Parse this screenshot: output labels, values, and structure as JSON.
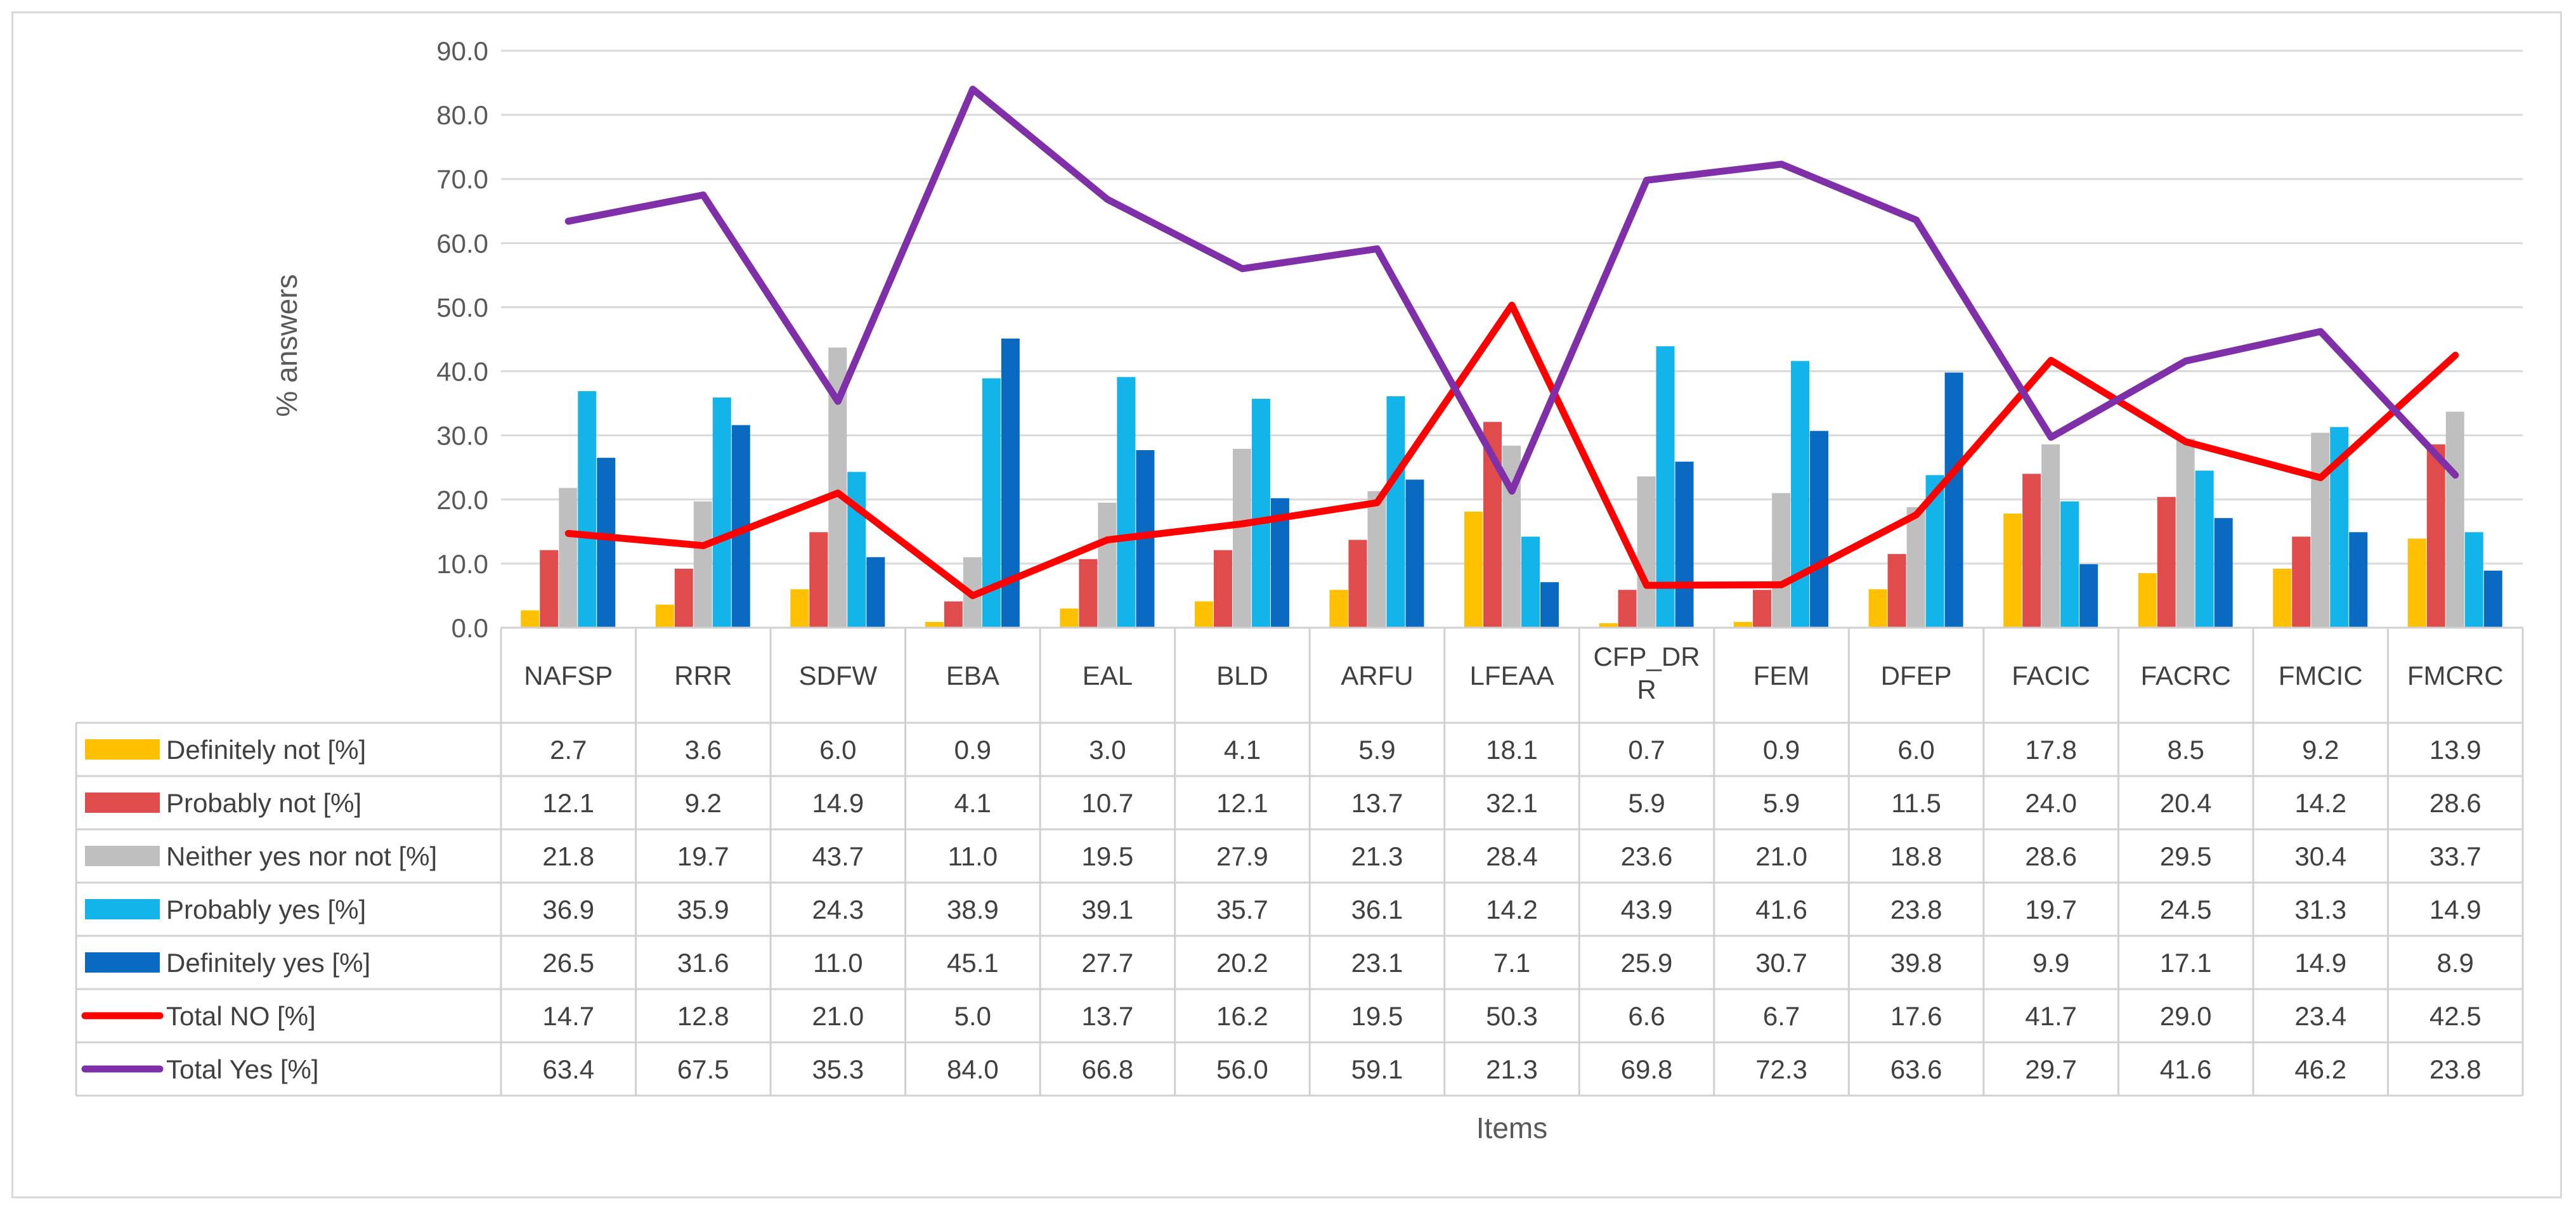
{
  "chart_data": {
    "type": "bar",
    "title": "",
    "xlabel": "Items",
    "ylabel": "% answers",
    "ylim": [
      0,
      90
    ],
    "yticks": [
      "0.0",
      "10.0",
      "20.0",
      "30.0",
      "40.0",
      "50.0",
      "60.0",
      "70.0",
      "80.0",
      "90.0"
    ],
    "categories": [
      "NAFSP",
      "RRR",
      "SDFW",
      "EBA",
      "EAL",
      "BLD",
      "ARFU",
      "LFEAA",
      "CFP_DRR",
      "FEM",
      "DFEP",
      "FACIC",
      "FACRC",
      "FMCIC",
      "FMCRC"
    ],
    "category_lines": [
      [
        "NAFSP"
      ],
      [
        "RRR"
      ],
      [
        "SDFW"
      ],
      [
        "EBA"
      ],
      [
        "EAL"
      ],
      [
        "BLD"
      ],
      [
        "ARFU"
      ],
      [
        "LFEAA"
      ],
      [
        "CFP_DR",
        "R"
      ],
      [
        "FEM"
      ],
      [
        "DFEP"
      ],
      [
        "FACIC"
      ],
      [
        "FACRC"
      ],
      [
        "FMCIC"
      ],
      [
        "FMCRC"
      ]
    ],
    "series": [
      {
        "name": "Definitely not [%]",
        "kind": "bar",
        "color": "#FFC000",
        "values": [
          2.7,
          3.6,
          6.0,
          0.9,
          3.0,
          4.1,
          5.9,
          18.1,
          0.7,
          0.9,
          6.0,
          17.8,
          8.5,
          9.2,
          13.9
        ],
        "labels": [
          "2.7",
          "3.6",
          "6.0",
          "0.9",
          "3.0",
          "4.1",
          "5.9",
          "18.1",
          "0.7",
          "0.9",
          "6.0",
          "17.8",
          "8.5",
          "9.2",
          "13.9"
        ]
      },
      {
        "name": "Probably not [%]",
        "kind": "bar",
        "color": "#E04B4B",
        "values": [
          12.1,
          9.2,
          14.9,
          4.1,
          10.7,
          12.1,
          13.7,
          32.1,
          5.9,
          5.9,
          11.5,
          24.0,
          20.4,
          14.2,
          28.6
        ],
        "labels": [
          "12.1",
          "9.2",
          "14.9",
          "4.1",
          "10.7",
          "12.1",
          "13.7",
          "32.1",
          "5.9",
          "5.9",
          "11.5",
          "24.0",
          "20.4",
          "14.2",
          "28.6"
        ]
      },
      {
        "name": "Neither yes nor not [%]",
        "kind": "bar",
        "color": "#BFBFBF",
        "values": [
          21.8,
          19.7,
          43.7,
          11.0,
          19.5,
          27.9,
          21.3,
          28.4,
          23.6,
          21.0,
          18.8,
          28.6,
          29.5,
          30.4,
          33.7
        ],
        "labels": [
          "21.8",
          "19.7",
          "43.7",
          "11.0",
          "19.5",
          "27.9",
          "21.3",
          "28.4",
          "23.6",
          "21.0",
          "18.8",
          "28.6",
          "29.5",
          "30.4",
          "33.7"
        ]
      },
      {
        "name": "Probably yes [%]",
        "kind": "bar",
        "color": "#12B4EA",
        "values": [
          36.9,
          35.9,
          24.3,
          38.9,
          39.1,
          35.7,
          36.1,
          14.2,
          43.9,
          41.6,
          23.8,
          19.7,
          24.5,
          31.3,
          14.9
        ],
        "labels": [
          "36.9",
          "35.9",
          "24.3",
          "38.9",
          "39.1",
          "35.7",
          "36.1",
          "14.2",
          "43.9",
          "41.6",
          "23.8",
          "19.7",
          "24.5",
          "31.3",
          "14.9"
        ]
      },
      {
        "name": "Definitely yes [%]",
        "kind": "bar",
        "color": "#0A6AC2",
        "values": [
          26.5,
          31.6,
          11.0,
          45.1,
          27.7,
          20.2,
          23.1,
          7.1,
          25.9,
          30.7,
          39.8,
          9.9,
          17.1,
          14.9,
          8.9
        ],
        "labels": [
          "26.5",
          "31.6",
          "11.0",
          "45.1",
          "27.7",
          "20.2",
          "23.1",
          "7.1",
          "25.9",
          "30.7",
          "39.8",
          "9.9",
          "17.1",
          "14.9",
          "8.9"
        ]
      },
      {
        "name": "Total NO [%]",
        "kind": "line",
        "color": "#FF0000",
        "values": [
          14.7,
          12.8,
          21.0,
          5.0,
          13.7,
          16.2,
          19.5,
          50.3,
          6.6,
          6.7,
          17.6,
          41.7,
          29.0,
          23.4,
          42.5
        ],
        "labels": [
          "14.7",
          "12.8",
          "21.0",
          "5.0",
          "13.7",
          "16.2",
          "19.5",
          "50.3",
          "6.6",
          "6.7",
          "17.6",
          "41.7",
          "29.0",
          "23.4",
          "42.5"
        ]
      },
      {
        "name": "Total Yes [%]",
        "kind": "line",
        "color": "#7F2FA8",
        "values": [
          63.4,
          67.5,
          35.3,
          84.0,
          66.8,
          56.0,
          59.1,
          21.3,
          69.8,
          72.3,
          63.6,
          29.7,
          41.6,
          46.2,
          23.8
        ],
        "labels": [
          "63.4",
          "67.5",
          "35.3",
          "84.0",
          "66.8",
          "56.0",
          "59.1",
          "21.3",
          "69.8",
          "72.3",
          "63.6",
          "29.7",
          "41.6",
          "46.2",
          "23.8"
        ]
      }
    ]
  }
}
